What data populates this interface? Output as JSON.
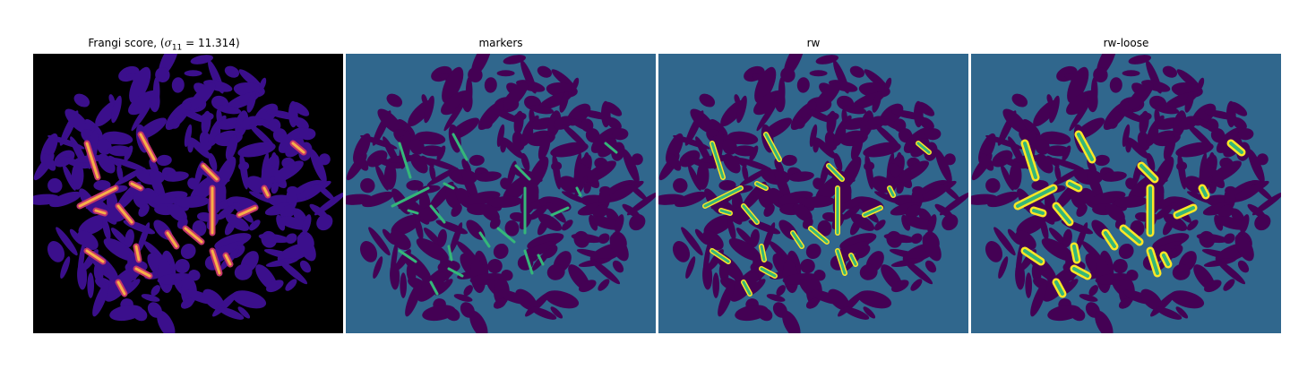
{
  "figure": {
    "panels": [
      {
        "id": "frangi",
        "title_prefix": "Frangi score, (",
        "title_math": "σ",
        "title_sub": "11",
        "title_suffix": " = 11.314)"
      },
      {
        "id": "markers",
        "title": "markers"
      },
      {
        "id": "rw",
        "title": "rw"
      },
      {
        "id": "rw-loose",
        "title": "rw-loose"
      }
    ]
  },
  "colors": {
    "background_black": "#000000",
    "frangi_tissue": "#3b0f8c",
    "frangi_hot": "#f7b047",
    "frangi_mid": "#c2346b",
    "label_background": "#30678d",
    "label_tissue": "#440154",
    "label_vessel": "#35b779",
    "label_highlight": "#fde725"
  }
}
